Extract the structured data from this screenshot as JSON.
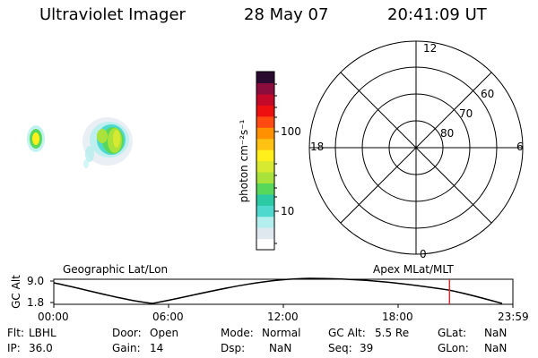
{
  "header": {
    "title": "Ultraviolet Imager",
    "date": "28 May 07",
    "time": "20:41:09 UT"
  },
  "colorbar": {
    "unit_label": "photon cm⁻²s⁻¹",
    "ticks": [
      "100",
      "10"
    ],
    "scale": "log",
    "colors": [
      "#ffffff",
      "#dfe8ef",
      "#b5eeee",
      "#4fd9ce",
      "#2ccaa4",
      "#57d85a",
      "#a8e23a",
      "#d7e930",
      "#ffef1a",
      "#ffc112",
      "#ff9000",
      "#ff4b12",
      "#ee1010",
      "#c4082a",
      "#8a0d3e",
      "#2b0a30"
    ]
  },
  "polar": {
    "mlt_labels": [
      "12",
      "18",
      "6",
      "0"
    ],
    "lat_labels": [
      "60",
      "70",
      "80"
    ]
  },
  "timeline": {
    "left_title": "Geographic Lat/Lon",
    "right_title": "Apex  MLat/MLT",
    "ylabel": "GC Alt",
    "y_ticks": [
      "9.0",
      "1.8"
    ],
    "x_ticks": [
      "00:00",
      "06:00",
      "12:00",
      "18:00",
      "23:59"
    ],
    "marker_color": "#d03030",
    "marker_time_hours": 20.686
  },
  "info": {
    "flt_label": "Flt:",
    "flt_value": "LBHL",
    "door_label": "Door:",
    "door_value": "Open",
    "mode_label": "Mode:",
    "mode_value": "Normal",
    "gcalt_label": "GC Alt:",
    "gcalt_value": "5.5 Re",
    "glat_label": "GLat:",
    "glat_value": "NaN",
    "ip_label": "IP:",
    "ip_value": "36.0",
    "gain_label": "Gain:",
    "gain_value": "14",
    "dsp_label": "Dsp:",
    "dsp_value": "NaN",
    "seq_label": "Seq:",
    "seq_value": "39",
    "glon_label": "GLon:",
    "glon_value": "NaN"
  }
}
